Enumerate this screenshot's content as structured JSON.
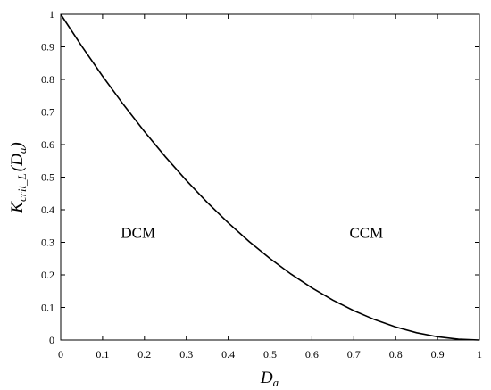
{
  "chart_data": {
    "type": "line",
    "title": "",
    "xlabel": "D",
    "xlabel_sub": "a",
    "ylabel": "K",
    "ylabel_sub": "crit_L",
    "ylabel_arg": "(D",
    "ylabel_arg_sub": "a",
    "ylabel_close": ")",
    "xlim": [
      0,
      1
    ],
    "ylim": [
      0,
      1
    ],
    "xticks": [
      0,
      0.1,
      0.2,
      0.3,
      0.4,
      0.5,
      0.6,
      0.7,
      0.8,
      0.9,
      1
    ],
    "xtick_labels": [
      "0",
      "0.1",
      "0.2",
      "0.3",
      "0.4",
      "0.5",
      "0.6",
      "0.7",
      "0.8",
      "0.9",
      "1"
    ],
    "yticks": [
      0,
      0.1,
      0.2,
      0.3,
      0.4,
      0.5,
      0.6,
      0.7,
      0.8,
      0.9,
      1
    ],
    "ytick_labels": [
      "0",
      "0.1",
      "0.2",
      "0.3",
      "0.4",
      "0.5",
      "0.6",
      "0.7",
      "0.8",
      "0.9",
      "1"
    ],
    "grid": false,
    "series": [
      {
        "color": "#000000",
        "x": [
          0,
          0.05,
          0.1,
          0.15,
          0.2,
          0.25,
          0.3,
          0.35,
          0.4,
          0.45,
          0.5,
          0.55,
          0.6,
          0.65,
          0.7,
          0.75,
          0.8,
          0.85,
          0.9,
          0.95,
          1
        ],
        "y": [
          1,
          0.9025,
          0.81,
          0.7225,
          0.64,
          0.5625,
          0.49,
          0.4225,
          0.36,
          0.3025,
          0.25,
          0.2025,
          0.16,
          0.1225,
          0.09,
          0.0625,
          0.04,
          0.0225,
          0.01,
          0.0025,
          0
        ]
      }
    ],
    "annotations": [
      {
        "text": "DCM",
        "x": 0.185,
        "y": 0.33
      },
      {
        "text": "CCM",
        "x": 0.73,
        "y": 0.33
      }
    ]
  }
}
